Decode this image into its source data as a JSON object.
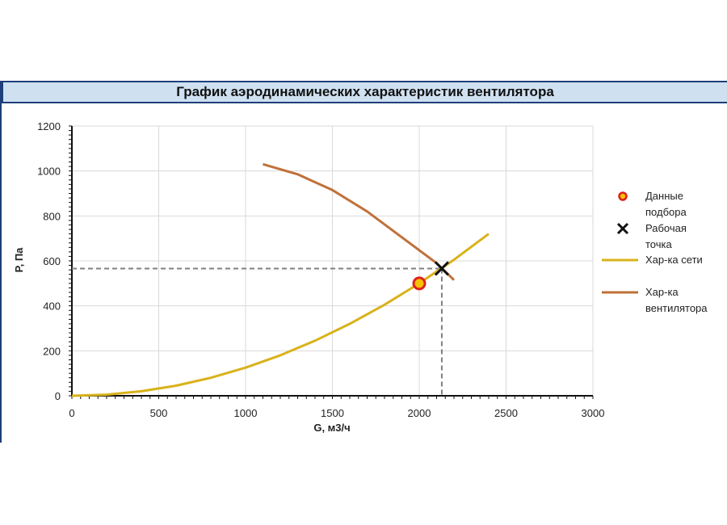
{
  "chart_data": {
    "type": "line",
    "title": "График аэродинамических характеристик вентилятора",
    "xlabel": "G, м3/ч",
    "ylabel": "P, Па",
    "xlim": [
      0,
      3000
    ],
    "ylim": [
      0,
      1200
    ],
    "x_ticks": [
      "0",
      "500",
      "1000",
      "1500",
      "2000",
      "2500",
      "3000"
    ],
    "y_ticks": [
      "0",
      "200",
      "400",
      "600",
      "800",
      "1000",
      "1200"
    ],
    "grid": true,
    "legend_position": "right",
    "series": [
      {
        "name": "Данные подбора",
        "kind": "marker",
        "marker": "circle",
        "color": "#f5c200",
        "edge_color": "#e0201b",
        "points": [
          [
            2000,
            500
          ]
        ]
      },
      {
        "name": "Рабочая точка",
        "kind": "marker",
        "marker": "x",
        "color": "#111111",
        "points": [
          [
            2130,
            566
          ]
        ]
      },
      {
        "name": "Хар-ка сети",
        "kind": "line",
        "color": "#d9b21a",
        "points": [
          [
            0,
            0
          ],
          [
            200,
            5
          ],
          [
            400,
            20
          ],
          [
            600,
            45
          ],
          [
            800,
            80
          ],
          [
            1000,
            125
          ],
          [
            1200,
            180
          ],
          [
            1400,
            245
          ],
          [
            1600,
            320
          ],
          [
            1800,
            405
          ],
          [
            2000,
            500
          ],
          [
            2200,
            605
          ],
          [
            2400,
            720
          ]
        ]
      },
      {
        "name": "Хар-ка вентилятора",
        "kind": "line",
        "color": "#c0713a",
        "points": [
          [
            1100,
            1030
          ],
          [
            1300,
            985
          ],
          [
            1500,
            915
          ],
          [
            1700,
            820
          ],
          [
            1900,
            705
          ],
          [
            2100,
            590
          ],
          [
            2200,
            515
          ]
        ]
      }
    ],
    "guide_lines": {
      "color": "#808080",
      "point": [
        2130,
        566
      ]
    }
  }
}
